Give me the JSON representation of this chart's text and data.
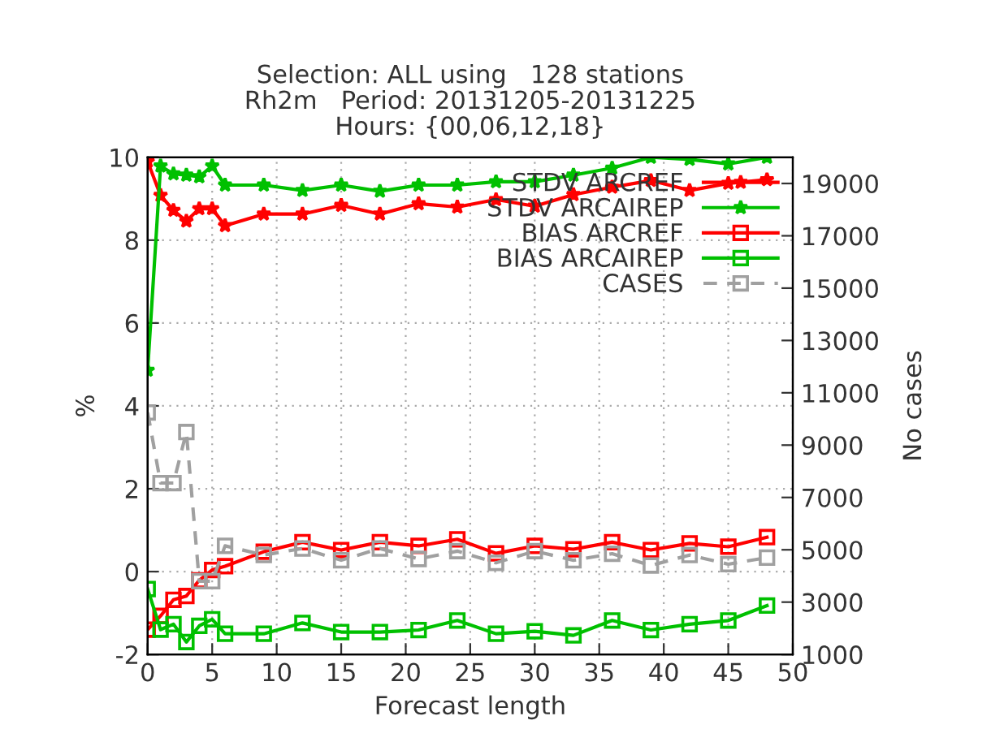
{
  "chart_data": {
    "type": "line",
    "title": "Selection: ALL using   128 stations\nRh2m   Period: 20131205-20131225\nHours: {00,06,12,18}",
    "xlabel": "Forecast length",
    "ylabel": "%",
    "y2label": "No cases",
    "x": [
      0,
      1,
      2,
      3,
      4,
      5,
      6,
      9,
      12,
      15,
      18,
      21,
      24,
      27,
      30,
      33,
      36,
      39,
      42,
      45,
      48
    ],
    "xlim": [
      0,
      50
    ],
    "xticks": [
      0,
      5,
      10,
      15,
      20,
      25,
      30,
      35,
      40,
      45,
      50
    ],
    "ylim": [
      -2,
      10
    ],
    "yticks": [
      -2,
      0,
      2,
      4,
      6,
      8,
      10
    ],
    "y2lim": [
      1000,
      20000
    ],
    "y2ticks": [
      1000,
      3000,
      5000,
      7000,
      9000,
      11000,
      13000,
      15000,
      17000,
      19000
    ],
    "grid": true,
    "legend": "top right",
    "series": [
      {
        "name": "STDV ARCREF",
        "color": "#ff0000",
        "marker": "star",
        "line_style": "solid",
        "values": [
          9.9,
          9.08,
          8.72,
          8.46,
          8.76,
          8.76,
          8.35,
          8.63,
          8.63,
          8.84,
          8.63,
          8.88,
          8.8,
          8.98,
          8.82,
          9.1,
          9.28,
          9.44,
          9.2,
          9.37,
          9.46
        ]
      },
      {
        "name": "STDV ARCAIREP",
        "color": "#00c000",
        "marker": "star",
        "line_style": "solid",
        "values": [
          4.86,
          9.79,
          9.6,
          9.57,
          9.53,
          9.79,
          9.33,
          9.33,
          9.2,
          9.33,
          9.18,
          9.33,
          9.33,
          9.41,
          9.41,
          9.57,
          9.74,
          10.0,
          9.95,
          9.84,
          10.0
        ]
      },
      {
        "name": "BIAS ARCREF",
        "color": "#ff0000",
        "marker": "square",
        "line_style": "solid",
        "values": [
          -1.4,
          -1.07,
          -0.68,
          -0.59,
          -0.21,
          0.04,
          0.13,
          0.48,
          0.71,
          0.52,
          0.71,
          0.62,
          0.78,
          0.44,
          0.62,
          0.54,
          0.71,
          0.52,
          0.68,
          0.6,
          0.83
        ]
      },
      {
        "name": "BIAS ARCAIREP",
        "color": "#00c000",
        "marker": "square",
        "line_style": "solid",
        "values": [
          -0.42,
          -1.4,
          -1.27,
          -1.7,
          -1.31,
          -1.15,
          -1.5,
          -1.5,
          -1.24,
          -1.46,
          -1.46,
          -1.41,
          -1.18,
          -1.5,
          -1.44,
          -1.54,
          -1.18,
          -1.41,
          -1.27,
          -1.18,
          -0.82
        ]
      },
      {
        "name": "CASES",
        "color": "#a0a0a0",
        "marker": "square",
        "line_style": "dashed",
        "axis": "y2",
        "values": [
          10250,
          7550,
          7550,
          9500,
          3800,
          3800,
          5150,
          4800,
          5050,
          4600,
          5050,
          4650,
          4950,
          4500,
          4950,
          4600,
          4850,
          4400,
          4800,
          4450,
          4700
        ]
      }
    ]
  }
}
